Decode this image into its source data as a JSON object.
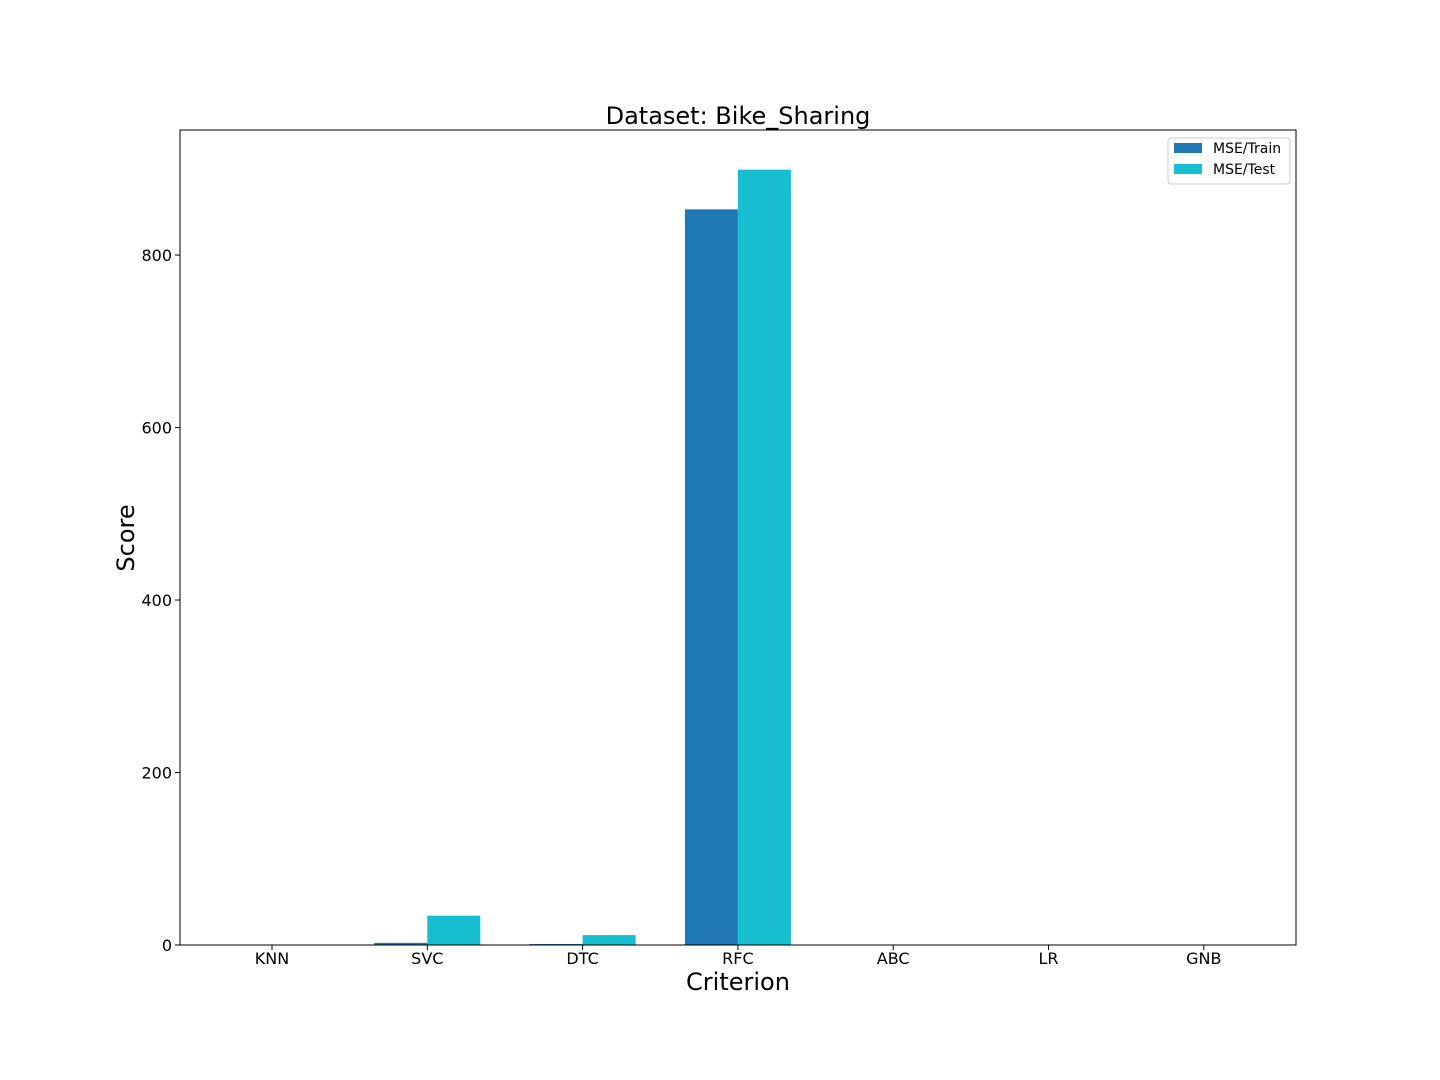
{
  "chart_data": {
    "type": "bar",
    "title": "Dataset: Bike_Sharing",
    "xlabel": "Criterion",
    "ylabel": "Score",
    "categories": [
      "KNN",
      "SVC",
      "DTC",
      "RFC",
      "ABC",
      "LR",
      "GNB"
    ],
    "series": [
      {
        "name": "MSE/Train",
        "color": "#1f77b4",
        "values": [
          0,
          2.5,
          1.2,
          853,
          0,
          0,
          0
        ]
      },
      {
        "name": "MSE/Test",
        "color": "#17becf",
        "values": [
          0,
          34,
          11.5,
          899,
          0,
          0,
          0
        ]
      }
    ],
    "ylim": [
      0,
      945
    ],
    "yticks": [
      0,
      200,
      400,
      600,
      800
    ],
    "grid": false,
    "legend_position": "top-right"
  }
}
